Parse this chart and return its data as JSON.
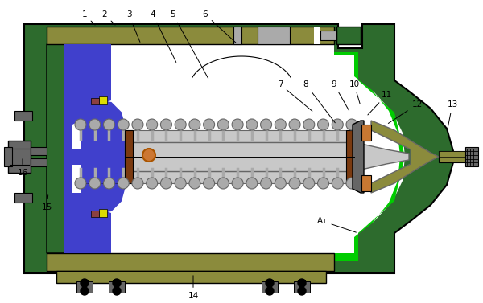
{
  "bg_color": "#ffffff",
  "dark_green": "#2d6b2d",
  "bright_green": "#00cc00",
  "olive": "#8b8b3c",
  "olive2": "#9b9b4a",
  "blue_fill": "#4040cc",
  "gray_light": "#c8c8c8",
  "gray_med": "#aaaaaa",
  "gray_dark": "#666666",
  "brown": "#7a3a10",
  "copper": "#c87832",
  "orange_dot": "#cc7733",
  "yellow_small": "#dddd00",
  "black": "#000000"
}
